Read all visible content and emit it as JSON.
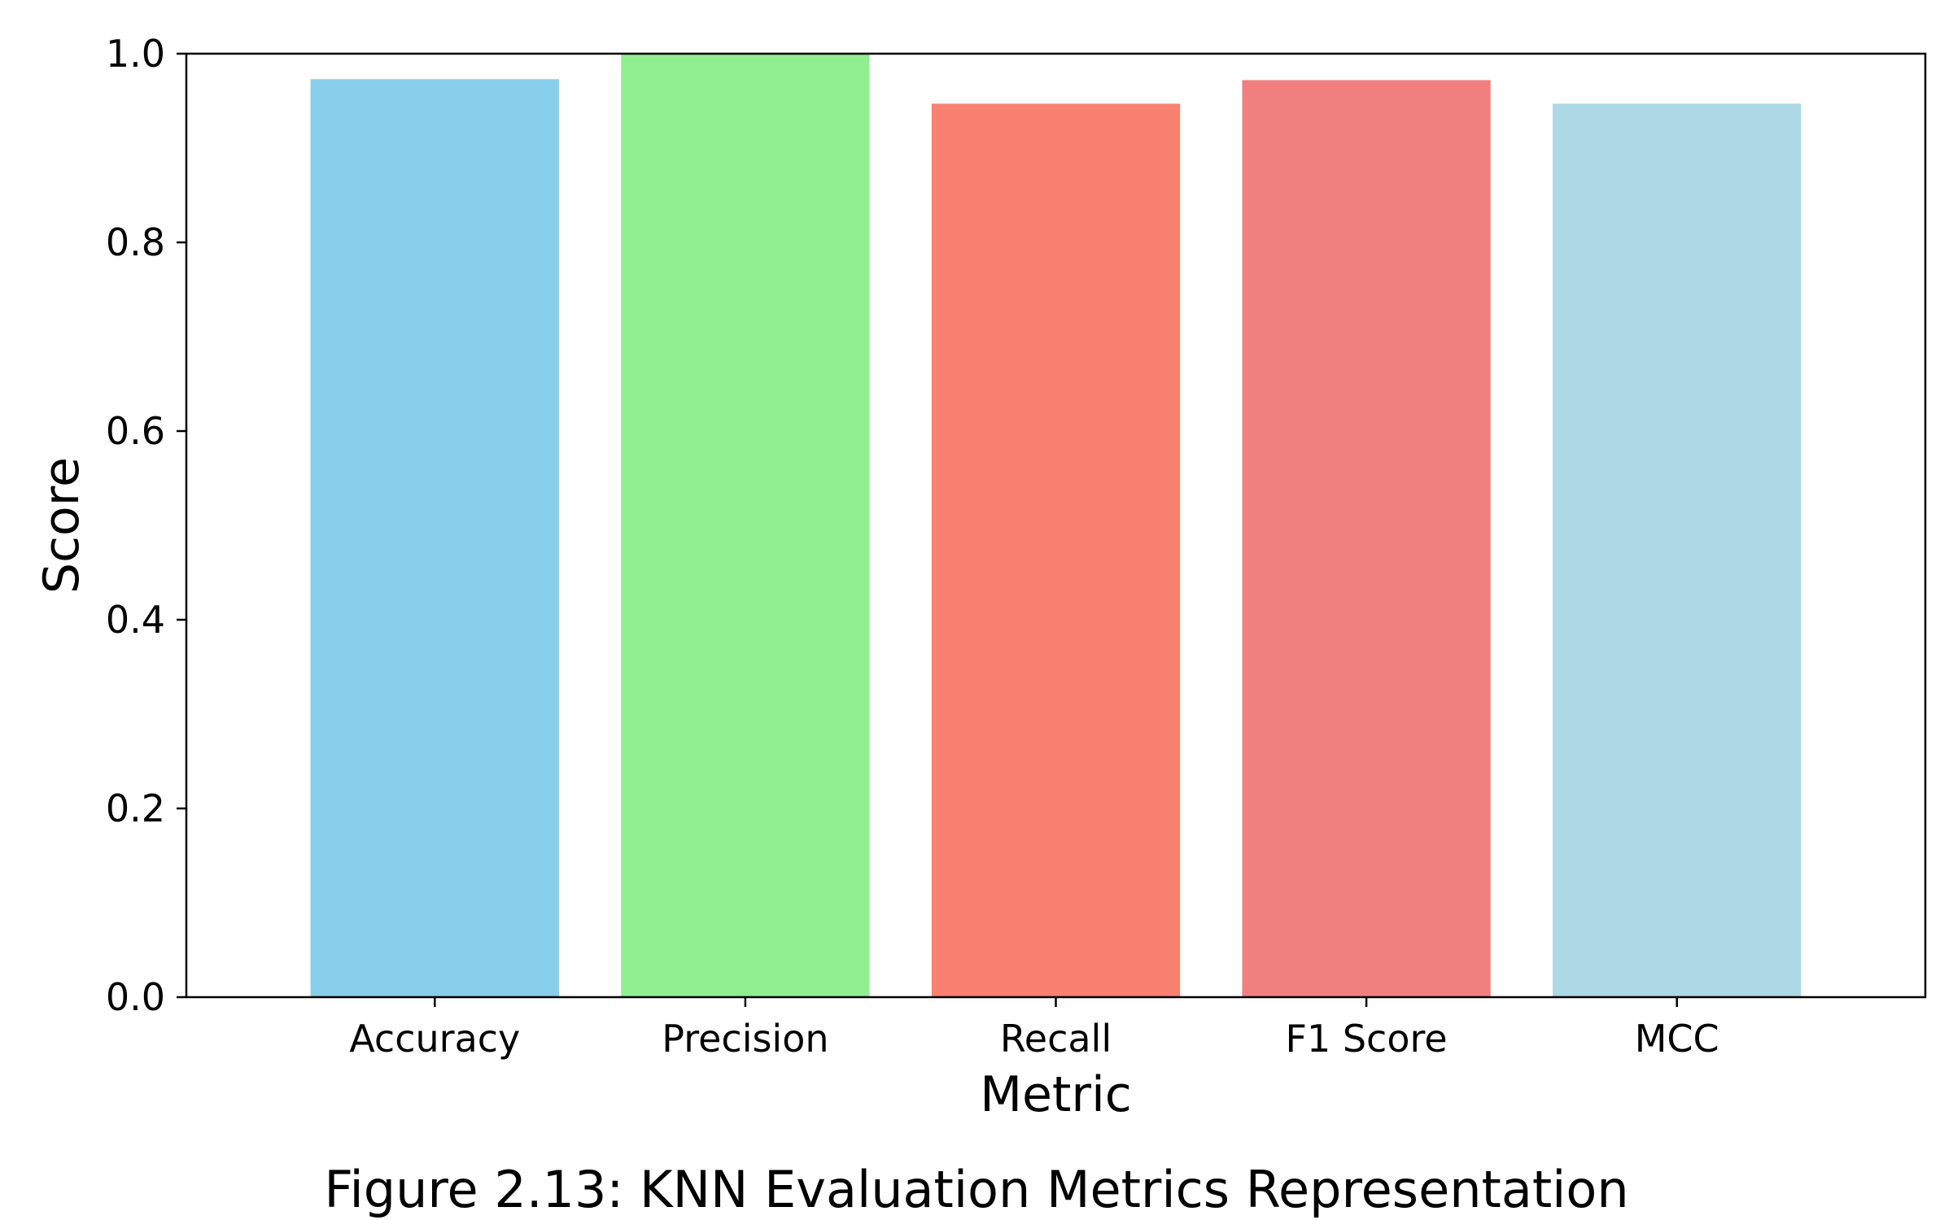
{
  "chart_data": {
    "type": "bar",
    "categories": [
      "Accuracy",
      "Precision",
      "Recall",
      "F1 Score",
      "MCC"
    ],
    "values": [
      0.973,
      1.0,
      0.947,
      0.972,
      0.947
    ],
    "colors": [
      "#87ceeb",
      "#90ee90",
      "#fa8072",
      "#f08080",
      "#add8e6"
    ],
    "xlabel": "Metric",
    "ylabel": "Score",
    "ylim": [
      0,
      1.0
    ],
    "yticks": [
      "0.0",
      "0.2",
      "0.4",
      "0.6",
      "0.8",
      "1.0"
    ],
    "grid": false,
    "legend": "none"
  },
  "caption": "Figure 2.13: KNN Evaluation Metrics Representation"
}
